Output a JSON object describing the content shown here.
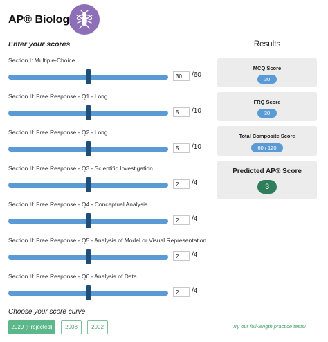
{
  "header": {
    "title": "AP® Biology",
    "logo_icon": "fly-icon"
  },
  "inputs_heading": "Enter your scores",
  "sections": [
    {
      "label": "Section I: Multiple-Choice",
      "value": "30",
      "max": "/60"
    },
    {
      "label": "Section II: Free Response - Q1 - Long",
      "value": "5",
      "max": "/10"
    },
    {
      "label": "Section II: Free Response - Q2 - Long",
      "value": "5",
      "max": "/10"
    },
    {
      "label": "Section II: Free Response - Q3 - Scientific Investigation",
      "value": "2",
      "max": "/4"
    },
    {
      "label": "Section II: Free Response - Q4 - Conceptual Analysis",
      "value": "2",
      "max": "/4"
    },
    {
      "label": "Section II: Free Response - Q5 - Analysis of Model or Visual Representation",
      "value": "2",
      "max": "/4"
    },
    {
      "label": "Section II: Free Response - Q6 - Analysis of Data",
      "value": "2",
      "max": "/4"
    }
  ],
  "curve": {
    "heading": "Choose your score curve",
    "options": [
      {
        "label": "2020 (Projected)",
        "selected": true
      },
      {
        "label": "2008",
        "selected": false
      },
      {
        "label": "2002",
        "selected": false
      }
    ]
  },
  "practice_link": "Try our full-length practice tests!",
  "results": {
    "title": "Results",
    "mcq": {
      "label": "MCQ Score",
      "value": "30"
    },
    "frq": {
      "label": "FRQ Score",
      "value": "30"
    },
    "composite": {
      "label": "Total Composite Score",
      "value": "60 / 120"
    },
    "predicted": {
      "label": "Predicted AP® Score",
      "value": "3"
    }
  },
  "colors": {
    "slider_track": "#5b9bd5",
    "slider_thumb": "#1f4e79",
    "logo": "#8d6fb7",
    "curve_active": "#5cb88a",
    "predicted_badge": "#2e7d5b",
    "link": "#4aa36b"
  }
}
